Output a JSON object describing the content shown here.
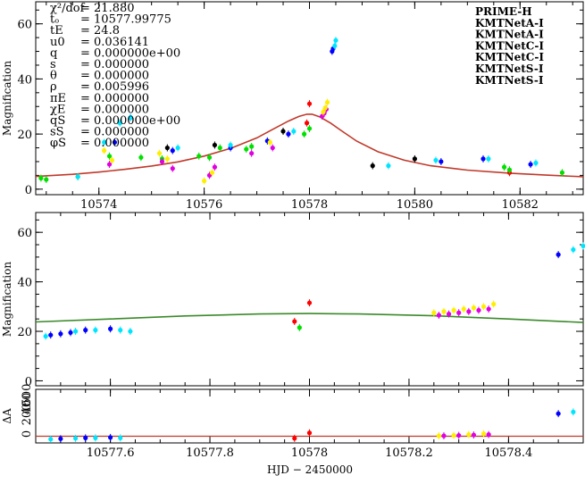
{
  "chart_data": [
    {
      "type": "scatter",
      "panel": "top",
      "title": "",
      "ylabel": "Magnification",
      "xlim": [
        10572.8,
        10583.2
      ],
      "ylim": [
        -2,
        68
      ],
      "xticks": [
        10574,
        10576,
        10578,
        10580,
        10582
      ],
      "yticks": [
        0,
        20,
        40,
        60
      ],
      "model": {
        "color": "#c0392b",
        "x": [
          10572.8,
          10573.5,
          10574.0,
          10574.5,
          10575.0,
          10575.5,
          10576.0,
          10576.5,
          10577.0,
          10577.3,
          10577.6,
          10577.8,
          10577.95,
          10578.05,
          10578.2,
          10578.4,
          10578.6,
          10578.9,
          10579.3,
          10579.8,
          10580.3,
          10581.0,
          10581.8,
          10582.5,
          10583.2
        ],
        "y": [
          4.6,
          5.4,
          6.2,
          7.2,
          8.4,
          9.9,
          12.0,
          14.8,
          18.6,
          21.7,
          24.7,
          26.4,
          27.2,
          27.2,
          26.2,
          24.0,
          21.3,
          17.4,
          13.6,
          10.5,
          8.5,
          6.9,
          5.8,
          5.1,
          4.5
        ]
      },
      "params": [
        {
          "label": "χ²/dof",
          "value": "= 21.880"
        },
        {
          "label": "tₒ",
          "value": "= 10577.99775"
        },
        {
          "label": "tE",
          "value": "= 24.8"
        },
        {
          "label": "u0",
          "value": "= 0.036141"
        },
        {
          "label": "q",
          "value": "= 0.000000e+00"
        },
        {
          "label": "s",
          "value": "= 0.000000"
        },
        {
          "label": "θ",
          "value": "= 0.000000"
        },
        {
          "label": "ρ",
          "value": "= 0.005996"
        },
        {
          "label": "πE",
          "value": "= 0.000000"
        },
        {
          "label": "χE",
          "value": "= 0.000000"
        },
        {
          "label": "qS",
          "value": "= 0.000000e+00"
        },
        {
          "label": "sS",
          "value": "= 0.000000"
        },
        {
          "label": "φS",
          "value": "= 0.000000"
        }
      ],
      "legend": [
        {
          "name": "PRIME-H",
          "color": "#000000"
        },
        {
          "name": "KMTNetA-I",
          "color": "#ff0000"
        },
        {
          "name": "KMTNetA-I",
          "color": "#00e000"
        },
        {
          "name": "KMTNetC-I",
          "color": "#0000ff"
        },
        {
          "name": "KMTNetC-I",
          "color": "#00e5ff"
        },
        {
          "name": "KMTNetS-I",
          "color": "#e000e0"
        },
        {
          "name": "KMTNetS-I",
          "color": "#ffee00"
        }
      ],
      "series": [
        {
          "name": "PRIME-H",
          "color": "#000000",
          "x": [
            10575.3,
            10576.2,
            10577.5,
            10579.2,
            10580.0
          ],
          "y": [
            15.0,
            16.0,
            21.0,
            8.5,
            11.0
          ]
        },
        {
          "name": "KMTNetA-I",
          "color": "#ff0000",
          "x": [
            10577.95,
            10578.0,
            10581.8
          ],
          "y": [
            24.0,
            31.0,
            6.0
          ]
        },
        {
          "name": "KMTNetA-I (green)",
          "color": "#00e000",
          "x": [
            10572.9,
            10573.0,
            10573.6,
            10574.2,
            10574.8,
            10575.2,
            10575.9,
            10576.1,
            10576.3,
            10576.8,
            10576.9,
            10577.9,
            10578.0,
            10581.7,
            10581.8,
            10582.8
          ],
          "y": [
            4.0,
            3.5,
            4.5,
            12.0,
            11.5,
            11.0,
            12.0,
            11.5,
            15.0,
            14.5,
            15.5,
            20.0,
            22.0,
            8.0,
            7.0,
            6.0
          ]
        },
        {
          "name": "KMTNetC-I",
          "color": "#0000ff",
          "x": [
            10574.3,
            10574.6,
            10575.4,
            10576.5,
            10577.2,
            10577.6,
            10578.43,
            10578.45,
            10580.5,
            10581.3,
            10582.2
          ],
          "y": [
            17.0,
            26.0,
            14.0,
            15.0,
            17.5,
            20.0,
            50.0,
            51.0,
            10.0,
            11.0,
            9.0
          ]
        },
        {
          "name": "KMTNetC-I (cyan)",
          "color": "#00e5ff",
          "x": [
            10573.6,
            10574.1,
            10574.4,
            10574.6,
            10575.5,
            10576.5,
            10577.7,
            10578.48,
            10578.5,
            10579.5,
            10580.4,
            10581.4,
            10582.3
          ],
          "y": [
            4.5,
            17.0,
            24.0,
            26.0,
            15.0,
            16.0,
            21.0,
            52.0,
            54.0,
            8.5,
            10.5,
            11.0,
            9.5
          ]
        },
        {
          "name": "KMTNetS-I",
          "color": "#e000e0",
          "x": [
            10574.2,
            10575.2,
            10575.4,
            10576.1,
            10576.2,
            10576.9,
            10577.3,
            10578.24,
            10578.28,
            10578.32
          ],
          "y": [
            9.0,
            10.0,
            7.5,
            5.0,
            8.0,
            13.0,
            15.0,
            26.5,
            27.5,
            29.0
          ]
        },
        {
          "name": "KMTNetS-I (yellow)",
          "color": "#ffee00",
          "x": [
            10574.1,
            10574.25,
            10575.15,
            10575.3,
            10576.0,
            10576.15,
            10577.25,
            10578.26,
            10578.3,
            10578.34
          ],
          "y": [
            14.0,
            10.5,
            13.0,
            11.0,
            3.0,
            6.0,
            17.0,
            28.0,
            29.5,
            31.5
          ]
        }
      ]
    },
    {
      "type": "scatter",
      "panel": "middle",
      "ylabel": "Magnification",
      "xlim": [
        10577.45,
        10578.55
      ],
      "ylim": [
        -2,
        68
      ],
      "yticks": [
        0,
        20,
        40,
        60
      ],
      "model": {
        "color": "#3a8a2a",
        "x": [
          10577.45,
          10577.6,
          10577.75,
          10577.9,
          10578.0,
          10578.1,
          10578.25,
          10578.4,
          10578.55
        ],
        "y": [
          23.8,
          25.0,
          26.2,
          27.0,
          27.2,
          27.0,
          26.3,
          25.0,
          23.6
        ]
      },
      "series": [
        {
          "name": "KMTNetA-I",
          "color": "#ff0000",
          "x": [
            10577.97,
            10578.0
          ],
          "y": [
            24.0,
            31.5
          ]
        },
        {
          "name": "KMTNetA-I (green)",
          "color": "#00e000",
          "x": [
            10577.98
          ],
          "y": [
            21.5
          ]
        },
        {
          "name": "KMTNetC-I",
          "color": "#0000ff",
          "x": [
            10577.48,
            10577.5,
            10577.52,
            10577.55,
            10577.6,
            10578.5
          ],
          "y": [
            18.5,
            19.0,
            19.5,
            20.5,
            21.0,
            51.0
          ]
        },
        {
          "name": "KMTNetC-I (cyan)",
          "color": "#00e5ff",
          "x": [
            10577.47,
            10577.53,
            10577.57,
            10577.62,
            10577.64,
            10578.53,
            10578.55
          ],
          "y": [
            18.0,
            20.0,
            20.5,
            20.5,
            20.0,
            53.0,
            54.5
          ]
        },
        {
          "name": "KMTNetS-I",
          "color": "#e000e0",
          "x": [
            10578.26,
            10578.28,
            10578.3,
            10578.32,
            10578.34,
            10578.36
          ],
          "y": [
            26.5,
            27.0,
            27.5,
            28.0,
            28.5,
            29.0
          ]
        },
        {
          "name": "KMTNetS-I (yellow)",
          "color": "#ffee00",
          "x": [
            10578.25,
            10578.27,
            10578.29,
            10578.31,
            10578.33,
            10578.35,
            10578.37
          ],
          "y": [
            27.5,
            28.0,
            28.5,
            29.0,
            29.5,
            30.0,
            31.0
          ]
        }
      ]
    },
    {
      "type": "scatter",
      "panel": "bottom",
      "ylabel": "ΔA",
      "xlabel": "HJD − 2450000",
      "xlim": [
        10577.45,
        10578.55
      ],
      "xticks": [
        10577.6,
        10577.8,
        10578,
        10578.2,
        10578.4
      ],
      "xticklabels": [
        "10577.6",
        "10577.8",
        "10578",
        "10578.2",
        "10578.4"
      ],
      "yticklabels": [
        "0",
        "200",
        "400",
        "500"
      ],
      "series": [
        {
          "name": "KMTNetC-I",
          "color": "#0000ff",
          "x": [
            10577.5,
            10577.55,
            10577.6,
            10578.5
          ],
          "y": [
            -3.0,
            -2.0,
            -1.5,
            27.0
          ]
        },
        {
          "name": "KMTNetC-I (cyan)",
          "color": "#00e5ff",
          "x": [
            10577.48,
            10577.53,
            10577.57,
            10577.62,
            10578.53
          ],
          "y": [
            -3.5,
            -2.5,
            -2.0,
            -2.0,
            29.0
          ]
        },
        {
          "name": "KMTNetA-I",
          "color": "#ff0000",
          "x": [
            10577.97,
            10578.0
          ],
          "y": [
            -2.5,
            4.0
          ]
        },
        {
          "name": "KMTNetS-I",
          "color": "#e000e0",
          "x": [
            10578.27,
            10578.3,
            10578.33,
            10578.36
          ],
          "y": [
            0.5,
            1.0,
            1.5,
            2.0
          ]
        },
        {
          "name": "KMTNetS-I (yellow)",
          "color": "#ffee00",
          "x": [
            10578.26,
            10578.29,
            10578.32,
            10578.35
          ],
          "y": [
            0.5,
            1.0,
            2.0,
            3.0
          ]
        }
      ]
    }
  ]
}
